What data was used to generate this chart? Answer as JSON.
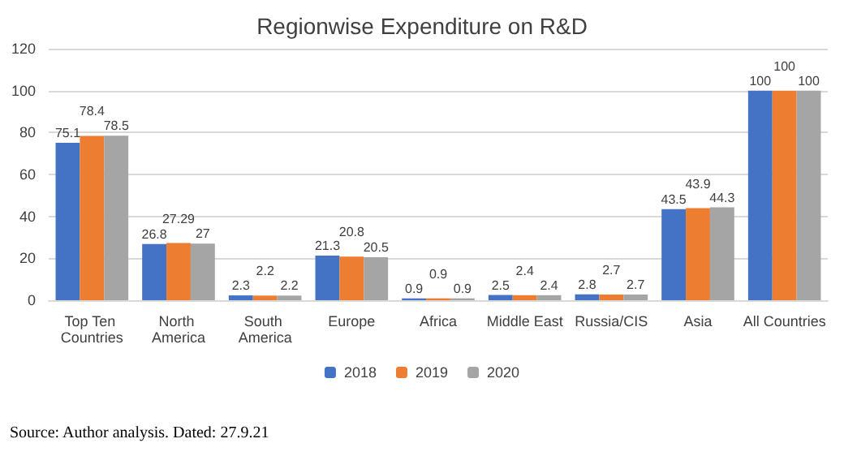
{
  "chart_data": {
    "type": "bar",
    "title": "Regionwise Expenditure on R&D",
    "categories": [
      "Top Ten Countries",
      "North America",
      "South America",
      "Europe",
      "Africa",
      "Middle East",
      "Russia/CIS",
      "Asia",
      "All Countries"
    ],
    "series": [
      {
        "name": "2018",
        "color": "#4472c4",
        "values": [
          75.1,
          26.8,
          2.3,
          21.3,
          0.9,
          2.5,
          2.8,
          43.5,
          100
        ]
      },
      {
        "name": "2019",
        "color": "#ed7d31",
        "values": [
          78.4,
          27.29,
          2.2,
          20.8,
          0.9,
          2.4,
          2.7,
          43.9,
          100
        ]
      },
      {
        "name": "2020",
        "color": "#a5a5a5",
        "values": [
          78.5,
          27,
          2.2,
          20.5,
          0.9,
          2.4,
          2.7,
          44.3,
          100
        ]
      }
    ],
    "ylim": [
      0,
      120
    ],
    "yticks": [
      0,
      20,
      40,
      60,
      80,
      100,
      120
    ],
    "grid": "y",
    "legend": "bottom",
    "data_labels": true,
    "annotations": [
      "Source: Author analysis. Dated: 27.9.21"
    ]
  }
}
